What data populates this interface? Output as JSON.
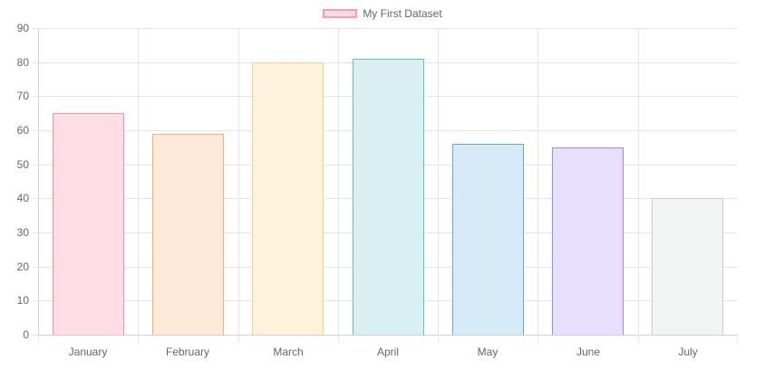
{
  "legend": {
    "label": "My First Dataset",
    "swatch_fill": "#ffdde4",
    "swatch_border": "#ff9aad"
  },
  "chart_data": {
    "type": "bar",
    "title": "",
    "xlabel": "",
    "ylabel": "",
    "categories": [
      "January",
      "February",
      "March",
      "April",
      "May",
      "June",
      "July"
    ],
    "series": [
      {
        "name": "My First Dataset",
        "values": [
          65,
          59,
          80,
          81,
          56,
          55,
          40
        ]
      }
    ],
    "ylim": [
      0,
      90
    ],
    "yticks": [
      0,
      10,
      20,
      30,
      40,
      50,
      60,
      70,
      80,
      90
    ],
    "grid": true,
    "legend_position": "top",
    "bar_colors": {
      "fill": [
        "#ffdde4",
        "#ffe9d8",
        "#fff2dc",
        "#d9eff0",
        "#d7eaf8",
        "#e7dffd",
        "#f2f3f3"
      ],
      "border": [
        "#ff8da6",
        "#ffab6a",
        "#ffd17a",
        "#5fc2c2",
        "#56aee8",
        "#a77ff5",
        "#c9cbcf"
      ]
    }
  }
}
